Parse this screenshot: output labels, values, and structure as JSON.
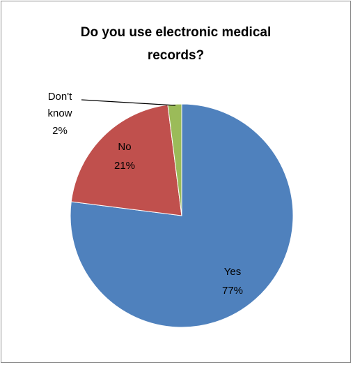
{
  "chart_data": {
    "type": "pie",
    "title_lines": [
      "Do you use electronic medical",
      "records?"
    ],
    "slices": [
      {
        "category": "Yes",
        "value": 77,
        "label": "77%",
        "color": "#4f81bd"
      },
      {
        "category": "No",
        "value": 21,
        "label": "21%",
        "color": "#c0504d"
      },
      {
        "category": [
          "Don't",
          "know"
        ],
        "value": 2,
        "label": "2%",
        "color": "#9bbb59"
      }
    ],
    "legend": "none",
    "start_angle": "12 o'clock, clockwise"
  }
}
